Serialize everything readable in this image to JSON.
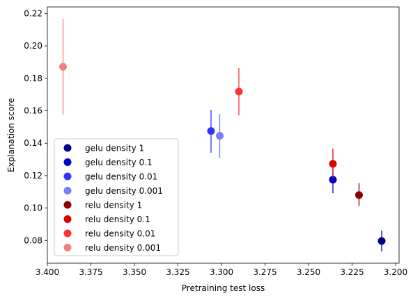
{
  "chart_data": {
    "type": "scatter",
    "xlabel": "Pretraining test loss",
    "ylabel": "Explanation score",
    "xlim": [
      3.4,
      3.198
    ],
    "x_inverted": true,
    "ylim": [
      0.066,
      0.224
    ],
    "xticks": [
      3.4,
      3.375,
      3.35,
      3.325,
      3.3,
      3.275,
      3.25,
      3.225,
      3.2
    ],
    "xtick_labels": [
      "3.400",
      "3.375",
      "3.350",
      "3.325",
      "3.300",
      "3.275",
      "3.250",
      "3.225",
      "3.200"
    ],
    "yticks": [
      0.08,
      0.1,
      0.12,
      0.14,
      0.16,
      0.18,
      0.2,
      0.22
    ],
    "ytick_labels": [
      "0.08",
      "0.10",
      "0.12",
      "0.14",
      "0.16",
      "0.18",
      "0.20",
      "0.22"
    ],
    "grid": false,
    "legend_position": "lower-left",
    "series": [
      {
        "name": "gelu density 1",
        "color": "#00008b",
        "x": 3.208,
        "y": 0.0797,
        "err_low": 0.0732,
        "err_high": 0.0862
      },
      {
        "name": "gelu density 0.1",
        "color": "#0000cd",
        "x": 3.236,
        "y": 0.1175,
        "err_low": 0.1092,
        "err_high": 0.1255
      },
      {
        "name": "gelu density 0.01",
        "color": "#3232ff",
        "x": 3.306,
        "y": 0.1475,
        "err_low": 0.1341,
        "err_high": 0.1606
      },
      {
        "name": "gelu density 0.001",
        "color": "#7b7bff",
        "x": 3.301,
        "y": 0.1445,
        "err_low": 0.131,
        "err_high": 0.158
      },
      {
        "name": "relu density 1",
        "color": "#8b0000",
        "x": 3.221,
        "y": 0.108,
        "err_low": 0.1012,
        "err_high": 0.1153
      },
      {
        "name": "relu density 0.1",
        "color": "#dd0000",
        "x": 3.236,
        "y": 0.1273,
        "err_low": 0.1185,
        "err_high": 0.1366
      },
      {
        "name": "relu density 0.01",
        "color": "#ff3232",
        "x": 3.29,
        "y": 0.1718,
        "err_low": 0.1571,
        "err_high": 0.1864
      },
      {
        "name": "relu density 0.001",
        "color": "#f27f7f",
        "x": 3.391,
        "y": 0.1871,
        "err_low": 0.1575,
        "err_high": 0.2167
      }
    ]
  }
}
